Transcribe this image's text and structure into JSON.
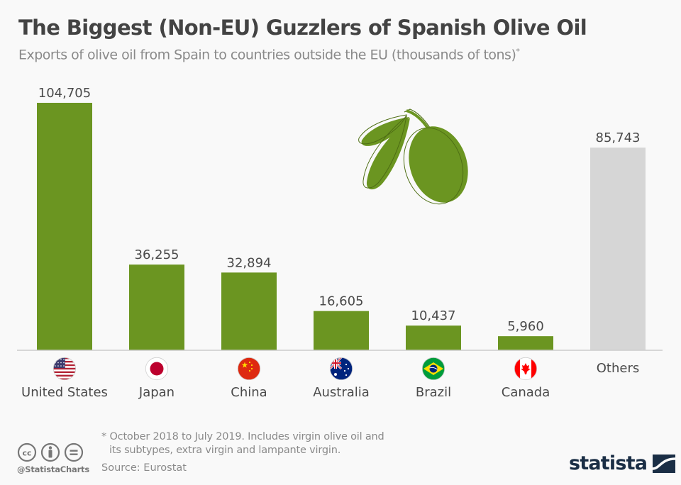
{
  "chart_data": {
    "type": "bar",
    "title": "The Biggest (Non-EU) Guzzlers of Spanish Olive Oil",
    "subtitle": "Exports of olive oil from Spain to countries outside the EU (thousands of tons)",
    "subtitle_marker": "*",
    "xlabel": "",
    "ylabel": "",
    "ylim": [
      0,
      110000
    ],
    "grid": false,
    "categories": [
      "United States",
      "Japan",
      "China",
      "Australia",
      "Brazil",
      "Canada",
      "Others"
    ],
    "values": [
      104705,
      36255,
      32894,
      16605,
      10437,
      5960,
      85743
    ],
    "value_labels": [
      "104,705",
      "36,255",
      "32,894",
      "16,605",
      "10,437",
      "5,960",
      "85,743"
    ],
    "flag_icons": [
      "us-flag-icon",
      "japan-flag-icon",
      "china-flag-icon",
      "australia-flag-icon",
      "brazil-flag-icon",
      "canada-flag-icon",
      ""
    ],
    "colors": {
      "primary": "#6b9521",
      "others": "#d6d6d6",
      "baseline": "#cccccc"
    }
  },
  "footer": {
    "note_line1": "* October 2018 to July 2019. Includes virgin olive oil and",
    "note_line2": "its subtypes, extra virgin and lampante virgin.",
    "source": "Source: Eurostat",
    "handle": "@StatistaCharts",
    "logo": "statista",
    "license_icons": [
      "cc-icon",
      "by-icon",
      "nd-icon"
    ]
  }
}
